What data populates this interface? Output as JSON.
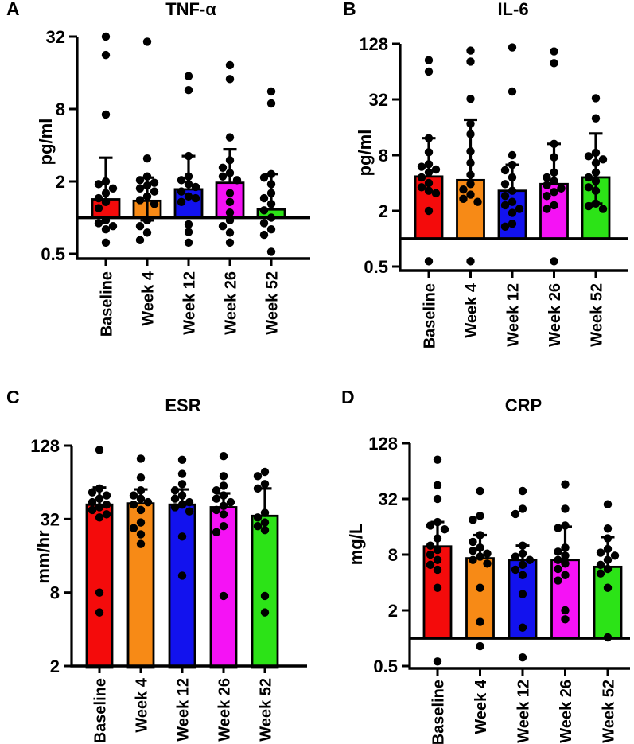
{
  "figure": {
    "description": "Four-panel bar/scatter figure of inflammatory markers over study visits",
    "panel_letters": [
      "A",
      "B",
      "C",
      "D"
    ]
  },
  "chart_data": [
    {
      "panel_letter": "A",
      "type": "bar",
      "title": "TNF-α",
      "ylabel": "pg/ml",
      "scale": "log4",
      "grid": false,
      "legend": "none",
      "categories": [
        "Baseline",
        "Week 4",
        "Week 12",
        "Week 26",
        "Week 52"
      ],
      "bar_colors": [
        "#f40b0b",
        "#f78a16",
        "#1212ee",
        "#f512f5",
        "#2ce317"
      ],
      "yticks": [
        0.5,
        2,
        8,
        32
      ],
      "ylim": [
        0.45,
        36
      ],
      "baseline": 1,
      "bars": [
        1.42,
        1.38,
        1.72,
        1.95,
        1.17
      ],
      "err_hi": [
        3.15,
        2.15,
        3.25,
        3.7,
        2.3
      ],
      "err_lo": [
        null,
        0.95,
        null,
        null,
        null
      ],
      "points": [
        [
          32,
          22.5,
          7.2,
          2.0,
          1.9,
          1.75,
          1.6,
          1.45,
          1.35,
          1.2,
          0.95,
          0.9,
          0.85,
          0.8,
          0.62
        ],
        [
          29,
          3.1,
          2.2,
          2.05,
          1.95,
          1.85,
          1.75,
          1.65,
          1.5,
          1.4,
          1.3,
          0.95,
          0.85,
          0.75,
          0.65
        ],
        [
          15,
          11.5,
          3.25,
          2.2,
          2.05,
          1.9,
          1.8,
          1.65,
          1.5,
          1.45,
          1.35,
          0.88,
          0.76,
          0.62
        ],
        [
          18.5,
          14.2,
          4.65,
          3.0,
          2.6,
          2.35,
          2.2,
          2.05,
          1.6,
          1.35,
          1.1,
          0.95,
          0.85,
          0.75,
          0.62
        ],
        [
          11.2,
          8.9,
          2.3,
          2.15,
          1.9,
          1.6,
          1.45,
          1.3,
          1.15,
          1.0,
          0.9,
          0.8,
          0.72,
          0.52
        ]
      ]
    },
    {
      "panel_letter": "B",
      "type": "bar",
      "title": "IL-6",
      "ylabel": "pg/ml",
      "scale": "log4",
      "grid": false,
      "legend": "none",
      "categories": [
        "Baseline",
        "Week 4",
        "Week 12",
        "Week 26",
        "Week 52"
      ],
      "bar_colors": [
        "#f40b0b",
        "#f78a16",
        "#1212ee",
        "#f512f5",
        "#2ce317"
      ],
      "yticks": [
        0.5,
        2,
        8,
        32,
        128
      ],
      "ylim": [
        0.45,
        140
      ],
      "baseline": 1,
      "bars": [
        4.7,
        4.3,
        3.3,
        3.9,
        4.6
      ],
      "err_hi": [
        12.2,
        19.3,
        6.3,
        10.6,
        13.7
      ],
      "err_lo": [
        null,
        null,
        null,
        null,
        2.4
      ],
      "points": [
        [
          85,
          64,
          12.2,
          8.6,
          6.4,
          6.0,
          5.6,
          5.2,
          4.6,
          4.0,
          3.6,
          3.3,
          3.1,
          2.0,
          0.57
        ],
        [
          108,
          82,
          32.5,
          17.5,
          13.5,
          8.8,
          6.6,
          4.9,
          3.9,
          3.4,
          3.0,
          2.7,
          2.5,
          0.57
        ],
        [
          117,
          39,
          8.0,
          6.3,
          5.5,
          4.6,
          3.9,
          3.3,
          2.9,
          2.5,
          2.3,
          2.1,
          1.9,
          1.45,
          1.35
        ],
        [
          106,
          79,
          10.6,
          7.6,
          5.2,
          4.6,
          4.2,
          3.8,
          3.5,
          3.2,
          2.9,
          2.3,
          2.1,
          0.57
        ],
        [
          33,
          20,
          8.5,
          7.8,
          7.2,
          6.6,
          5.2,
          4.6,
          4.2,
          3.6,
          3.3,
          2.4,
          2.25,
          2.1
        ]
      ]
    },
    {
      "panel_letter": "C",
      "type": "bar",
      "title": "ESR",
      "ylabel": "mm/hr",
      "scale": "log4",
      "grid": false,
      "legend": "none",
      "categories": [
        "Baseline",
        "Week 4",
        "Week 12",
        "Week 26",
        "Week 52"
      ],
      "bar_colors": [
        "#f40b0b",
        "#f78a16",
        "#1212ee",
        "#f512f5",
        "#2ce317"
      ],
      "yticks": [
        2,
        8,
        32,
        128
      ],
      "ylim": [
        2,
        140
      ],
      "baseline": null,
      "bars": [
        42,
        43,
        42,
        40,
        34
      ],
      "err_hi": [
        58,
        56,
        56,
        52,
        57
      ],
      "err_lo": [
        null,
        null,
        null,
        null,
        null
      ],
      "points": [
        [
          118,
          57,
          53,
          50,
          47,
          44,
          42,
          40,
          38,
          35,
          33,
          8,
          5.5
        ],
        [
          100,
          70,
          55,
          50,
          47,
          44,
          42,
          38,
          30,
          27,
          24,
          20
        ],
        [
          98,
          75,
          62,
          55,
          50,
          47,
          44,
          42,
          40,
          37,
          23,
          11
        ],
        [
          105,
          72,
          60,
          55,
          50,
          47,
          44,
          41,
          38,
          35,
          28,
          25,
          7.5
        ],
        [
          78,
          72,
          62,
          57,
          36,
          33,
          30,
          28,
          26,
          7.5,
          5.5
        ]
      ]
    },
    {
      "panel_letter": "D",
      "type": "bar",
      "title": "CRP",
      "ylabel": "mg/L",
      "scale": "log4",
      "grid": false,
      "legend": "none",
      "categories": [
        "Baseline",
        "Week 4",
        "Week 12",
        "Week 26",
        "Week 52"
      ],
      "bar_colors": [
        "#f40b0b",
        "#f78a16",
        "#1212ee",
        "#f512f5",
        "#2ce317"
      ],
      "yticks": [
        0.5,
        2,
        8,
        32,
        128
      ],
      "ylim": [
        0.45,
        140
      ],
      "baseline": 1,
      "bars": [
        9.8,
        7.3,
        7.0,
        7.0,
        5.9
      ],
      "err_hi": [
        18,
        13,
        10,
        16,
        12.4
      ],
      "err_lo": [
        null,
        null,
        null,
        null,
        null
      ],
      "points": [
        [
          85,
          45,
          32,
          18,
          16.5,
          15,
          12,
          10,
          9,
          8,
          7,
          6.2,
          5.5,
          3.5,
          0.56
        ],
        [
          39,
          21,
          19,
          13,
          11,
          9.5,
          8.8,
          8.2,
          7.6,
          7.0,
          6.4,
          3.5,
          1.5,
          0.82
        ],
        [
          39,
          25,
          22,
          10,
          8.2,
          7.6,
          7.0,
          6.2,
          5.5,
          4.8,
          3.0,
          1.3,
          0.62
        ],
        [
          46,
          25,
          16.5,
          15.5,
          9.5,
          8.6,
          7.8,
          7.0,
          6.4,
          5.6,
          4.8,
          4.2,
          2.0,
          1.6
        ],
        [
          28,
          15.3,
          12,
          9.2,
          8.4,
          7.8,
          7.0,
          6.2,
          5.6,
          5.0,
          3.5,
          1.02
        ]
      ]
    }
  ]
}
